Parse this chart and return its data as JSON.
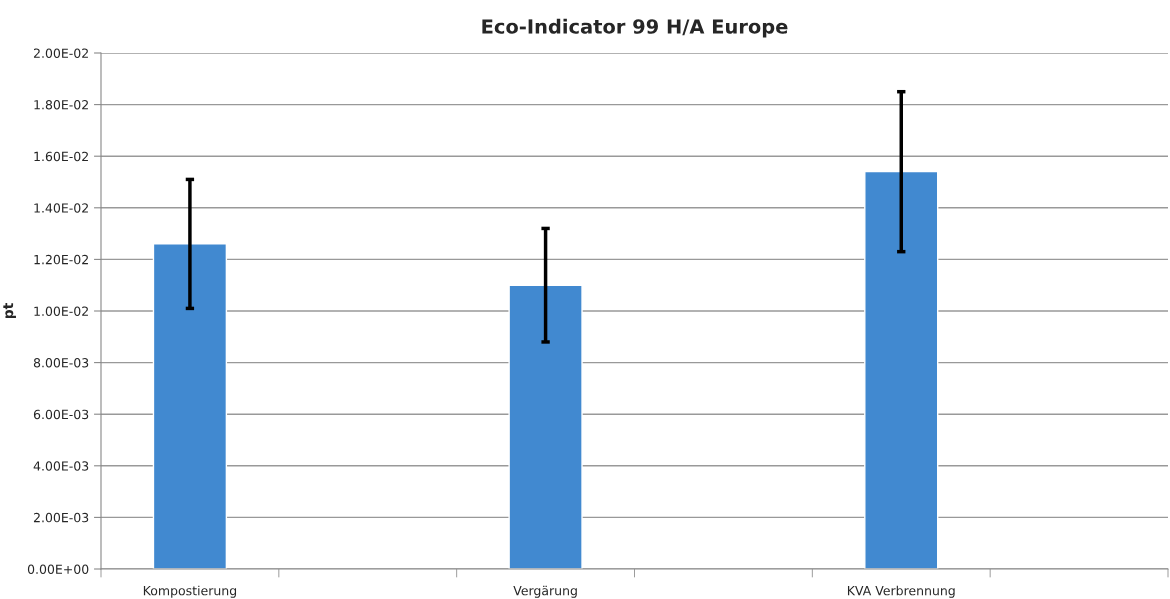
{
  "chart_data": {
    "type": "bar",
    "title": "Eco-Indicator 99 H/A Europe",
    "ylabel": "pt",
    "categories": [
      "Kompostierung",
      null,
      "Vergärung",
      null,
      "KVA Verbrennung",
      null
    ],
    "values": [
      0.0126,
      null,
      0.011,
      null,
      0.0154,
      null
    ],
    "errors": [
      0.0025,
      null,
      0.0022,
      null,
      0.0031,
      null
    ],
    "color": "#4189d0",
    "ylim": [
      0,
      0.02
    ],
    "yticks": [
      {
        "value": 0,
        "label": "0.00E+00"
      },
      {
        "value": 0.002,
        "label": "2.00E-03"
      },
      {
        "value": 0.004,
        "label": "4.00E-03"
      },
      {
        "value": 0.006,
        "label": "6.00E-03"
      },
      {
        "value": 0.008,
        "label": "8.00E-03"
      },
      {
        "value": 0.01,
        "label": "1.00E-02"
      },
      {
        "value": 0.012,
        "label": "1.20E-02"
      },
      {
        "value": 0.014,
        "label": "1.40E-02"
      },
      {
        "value": 0.016,
        "label": "1.60E-02"
      },
      {
        "value": 0.018,
        "label": "1.80E-02"
      },
      {
        "value": 0.02,
        "label": "2.00E-02"
      }
    ],
    "grid": "y"
  }
}
